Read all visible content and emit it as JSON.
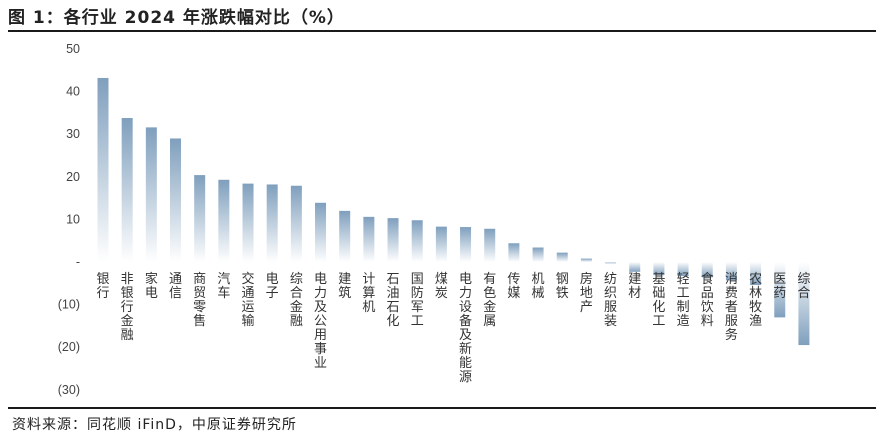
{
  "title": "图 1：各行业 2024 年涨跌幅对比（%）",
  "source": "资料来源：同花顺 iFinD，中原证券研究所",
  "colors": {
    "bar_top": "#7f9fbd",
    "bar_fade": "#ffffff",
    "rule": "#1a1a1a"
  },
  "chart_data": {
    "type": "bar",
    "title": "各行业 2024 年涨跌幅对比（%）",
    "ylim": [
      -30,
      50
    ],
    "yticks": [
      50,
      40,
      30,
      20,
      10,
      0,
      -10,
      -20,
      -30
    ],
    "ytick_labels": [
      "50",
      "40",
      "30",
      "20",
      "10",
      "-",
      "(10)",
      "(20)",
      "(30)"
    ],
    "categories": [
      "银行",
      "非银行金融",
      "家电",
      "通信",
      "商贸零售",
      "汽车",
      "交通运输",
      "电子",
      "综合金融",
      "电力及公用事业",
      "建筑",
      "计算机",
      "石油石化",
      "国防军工",
      "煤炭",
      "电力设备及新能源",
      "有色金属",
      "传媒",
      "机械",
      "钢铁",
      "房地产",
      "纺织服装",
      "建材",
      "基础化工",
      "轻工制造",
      "食品饮料",
      "消费者服务",
      "农林牧渔",
      "医药",
      "综合"
    ],
    "values": [
      43.2,
      33.8,
      31.6,
      29.0,
      20.4,
      19.3,
      18.4,
      18.2,
      17.9,
      13.9,
      12.0,
      10.6,
      10.3,
      9.8,
      8.3,
      8.2,
      7.8,
      4.4,
      3.4,
      2.2,
      0.8,
      -0.3,
      -2.3,
      -3.1,
      -3.3,
      -3.6,
      -4.3,
      -5.4,
      -13.0,
      -19.5
    ],
    "grid": false,
    "legend": "none"
  }
}
